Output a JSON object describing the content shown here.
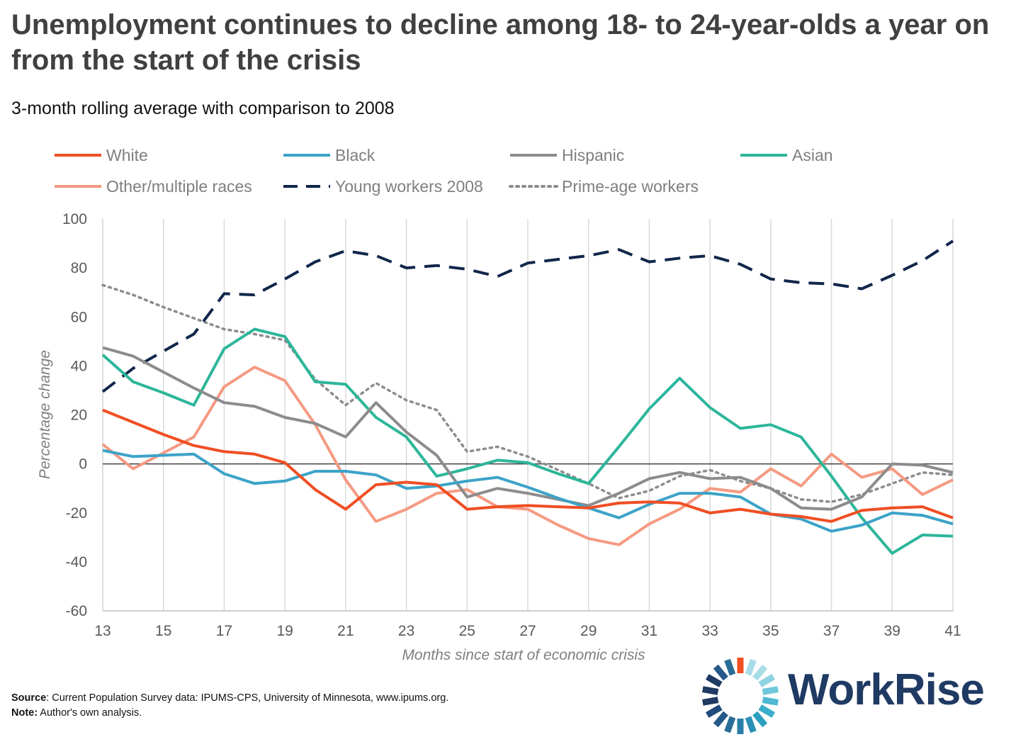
{
  "title": "Unemployment continues to decline among 18- to 24-year-olds a year on from the start of the crisis",
  "subtitle": "3-month rolling average with comparison to 2008",
  "footer": {
    "source_label": "Source",
    "source_text": ": Current Population Survey data: IPUMS-CPS, University of Minnesota, www.ipums.org.",
    "note_label": "Note:",
    "note_text": " Author's own analysis."
  },
  "logo": {
    "text": "WorkRise"
  },
  "chart_data": {
    "type": "line",
    "xlabel": "Months since start of economic crisis",
    "ylabel": "Percentage change",
    "xlim": [
      13,
      41
    ],
    "ylim": [
      -60,
      100
    ],
    "x_ticks": [
      13,
      15,
      17,
      19,
      21,
      23,
      25,
      27,
      29,
      31,
      33,
      35,
      37,
      39,
      41
    ],
    "y_ticks": [
      -60,
      -40,
      -20,
      0,
      20,
      40,
      60,
      80,
      100
    ],
    "grid": "vertical",
    "legend_position": "top",
    "x": [
      13,
      14,
      15,
      16,
      17,
      18,
      19,
      20,
      21,
      22,
      23,
      24,
      25,
      26,
      27,
      28,
      29,
      30,
      31,
      32,
      33,
      34,
      35,
      36,
      37,
      38,
      39,
      40,
      41
    ],
    "series": [
      {
        "name": "White",
        "color": "#f04e23",
        "style": "solid",
        "values": [
          22,
          17,
          12,
          7.5,
          5,
          4,
          0.5,
          -10.5,
          -18.5,
          -8.5,
          -7.5,
          -8.5,
          -18.5,
          -17.5,
          -17,
          -17.5,
          -18,
          -16,
          -15.5,
          -16,
          -20,
          -18.5,
          -20.5,
          -21.5,
          -23.5,
          -19,
          -18,
          -17.5,
          -22
        ]
      },
      {
        "name": "Black",
        "color": "#3ca3c8",
        "style": "solid",
        "values": [
          5.5,
          3,
          3.5,
          4,
          -4,
          -8,
          -7,
          -3,
          -3,
          -4.5,
          -10,
          -9,
          -7,
          -5.5,
          -9.5,
          -14,
          -18,
          -22,
          -16.5,
          -12,
          -12,
          -13.5,
          -20.5,
          -22.5,
          -27.5,
          -25,
          -20,
          -21,
          -24.5
        ]
      },
      {
        "name": "Hispanic",
        "color": "#8c8c8c",
        "style": "solid",
        "values": [
          47.5,
          44,
          37.5,
          31,
          25,
          23.5,
          19,
          16.5,
          11,
          25,
          13,
          3.5,
          -13.5,
          -10,
          -12,
          -14.5,
          -17,
          -12,
          -6,
          -3.5,
          -6,
          -5.5,
          -10,
          -18,
          -18.5,
          -13.5,
          0,
          -0.5,
          -3.5
        ]
      },
      {
        "name": "Asian",
        "color": "#2db699",
        "style": "solid",
        "values": [
          44.5,
          33.5,
          29,
          24,
          47,
          55,
          52,
          33.5,
          32.5,
          19,
          11,
          -5,
          -2,
          1.5,
          0.5,
          -4,
          -8,
          7,
          22.5,
          35,
          23,
          14.5,
          16,
          11,
          -5,
          -22,
          -36.5,
          -29,
          -29.5
        ]
      },
      {
        "name": "Other/multiple races",
        "color": "#f59a82",
        "style": "solid",
        "values": [
          8,
          -2,
          4.5,
          11,
          31.5,
          39.5,
          34,
          16,
          -6.5,
          -23.5,
          -18.5,
          -12,
          -10.5,
          -17.5,
          -18.5,
          -25,
          -30.5,
          -33,
          -24.5,
          -18.5,
          -10,
          -11.5,
          -2,
          -9,
          4,
          -5.5,
          -2,
          -12.5,
          -6.5
        ]
      },
      {
        "name": "Young workers 2008",
        "color": "#11264a",
        "style": "dashed",
        "values": [
          29.5,
          39,
          46,
          53,
          69.5,
          69,
          75.5,
          82.5,
          87,
          85,
          80,
          81,
          79.5,
          76.5,
          82,
          83.5,
          85,
          87.5,
          82.5,
          84,
          85,
          81.5,
          75.5,
          74,
          73.5,
          71.5,
          77,
          83,
          91
        ]
      },
      {
        "name": "Prime-age workers",
        "color": "#8c8c8c",
        "style": "dotted",
        "values": [
          73,
          69,
          64,
          59.5,
          55,
          53,
          50.5,
          34.5,
          24,
          33,
          26,
          22,
          5,
          7,
          3,
          -2.5,
          -8,
          -14,
          -11,
          -5,
          -2.5,
          -7,
          -10,
          -14.5,
          -15.5,
          -12.5,
          -8,
          -3.5,
          -4.5
        ]
      }
    ]
  }
}
